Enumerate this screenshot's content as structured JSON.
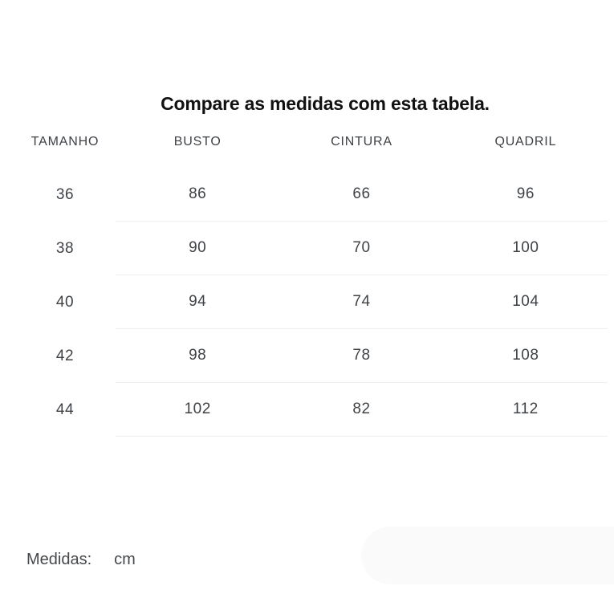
{
  "title": "Compare as medidas com esta tabela.",
  "table": {
    "headers": [
      "TAMANHO",
      "BUSTO",
      "CINTURA",
      "QUADRIL"
    ],
    "rows": [
      [
        "36",
        "86",
        "66",
        "96"
      ],
      [
        "38",
        "90",
        "70",
        "100"
      ],
      [
        "40",
        "94",
        "74",
        "104"
      ],
      [
        "42",
        "98",
        "78",
        "108"
      ],
      [
        "44",
        "102",
        "82",
        "112"
      ]
    ]
  },
  "footer": {
    "label": "Medidas:",
    "unit": "cm"
  },
  "colors": {
    "title_text": "#111111",
    "header_text": "#3e4247",
    "cell_text": "#3f4347",
    "separator": "#eeeeee",
    "pill_background": "#fafafa"
  }
}
